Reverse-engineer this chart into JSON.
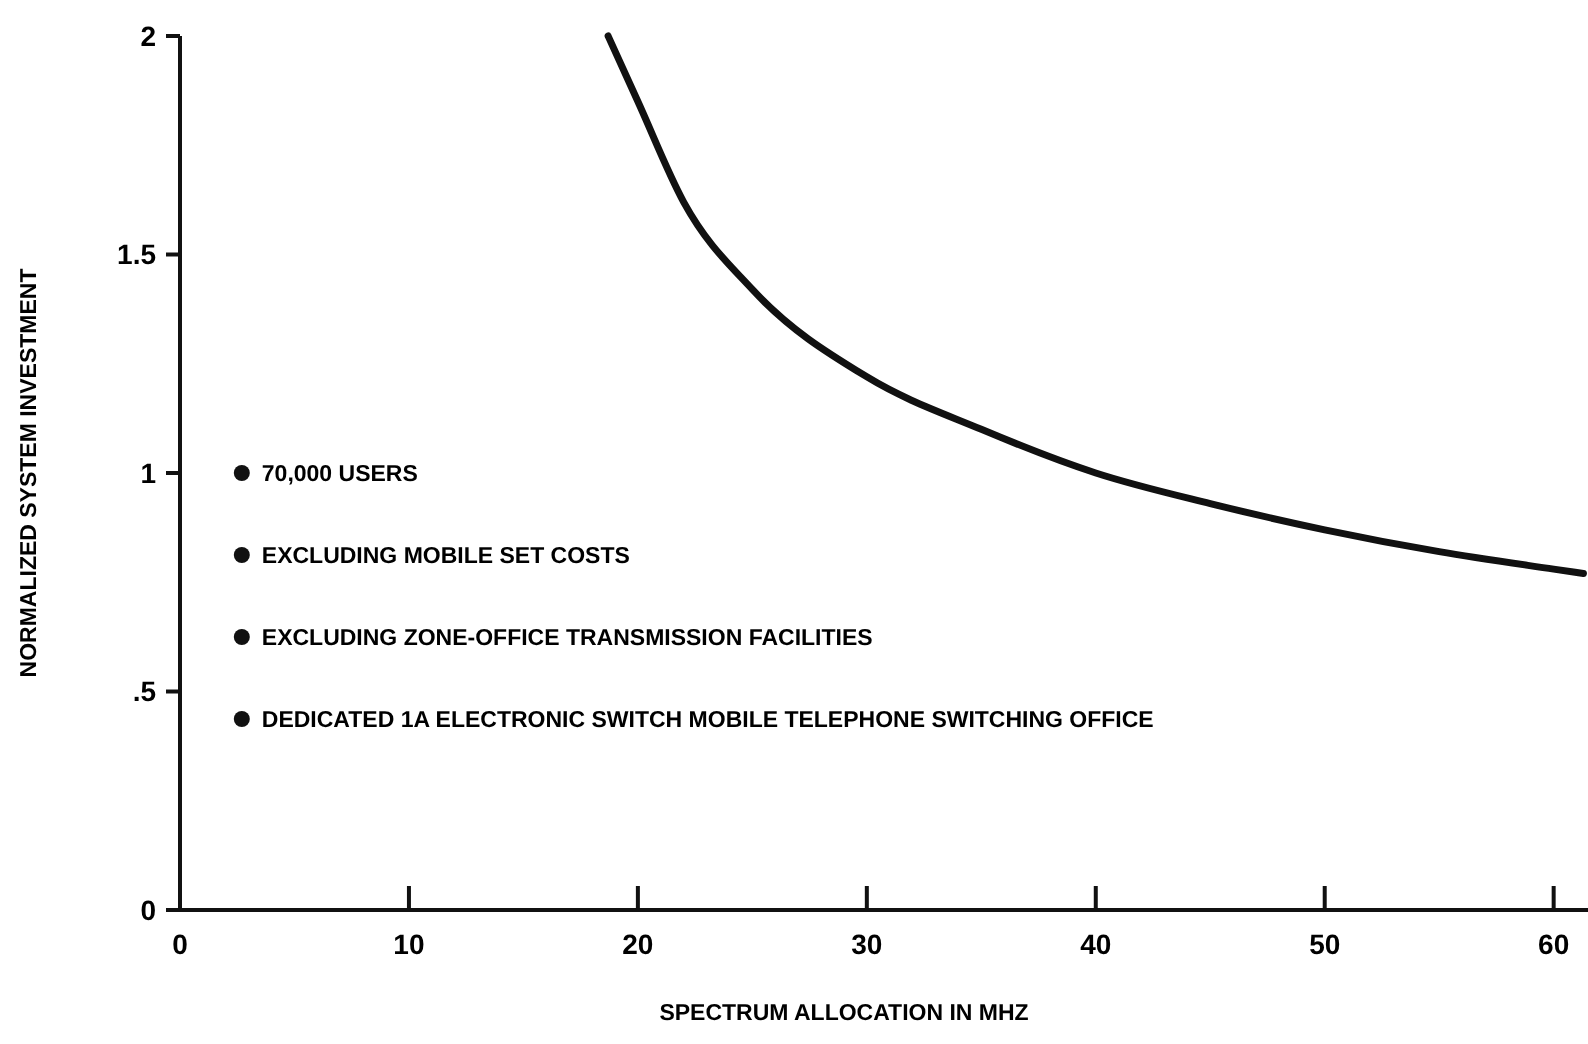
{
  "chart_data": {
    "type": "line",
    "xlabel": "SPECTRUM ALLOCATION IN MHZ",
    "ylabel": "NORMALIZED SYSTEM INVESTMENT",
    "x": [
      18.7,
      20,
      22,
      25,
      30,
      35,
      40,
      45,
      50,
      55,
      60,
      61.3
    ],
    "series": [
      {
        "color": "#111111",
        "values": [
          2.0,
          1.85,
          1.62,
          1.42,
          1.22,
          1.1,
          1.0,
          0.93,
          0.87,
          0.82,
          0.78,
          0.77
        ]
      }
    ],
    "xlim": [
      0,
      61.5
    ],
    "ylim": [
      0,
      2
    ],
    "xticks": [
      0,
      10,
      20,
      30,
      40,
      50,
      60
    ],
    "yticks": [
      0,
      {
        "value": 0.5,
        "label": ".5"
      },
      1,
      1.5,
      2
    ],
    "marker": "none",
    "line_style": "solid",
    "annotations": [
      "70,000 USERS",
      "EXCLUDING MOBILE SET COSTS",
      "EXCLUDING ZONE-OFFICE TRANSMISSION FACILITIES",
      "DEDICATED 1A ELECTRONIC SWITCH MOBILE TELEPHONE SWITCHING OFFICE"
    ]
  }
}
